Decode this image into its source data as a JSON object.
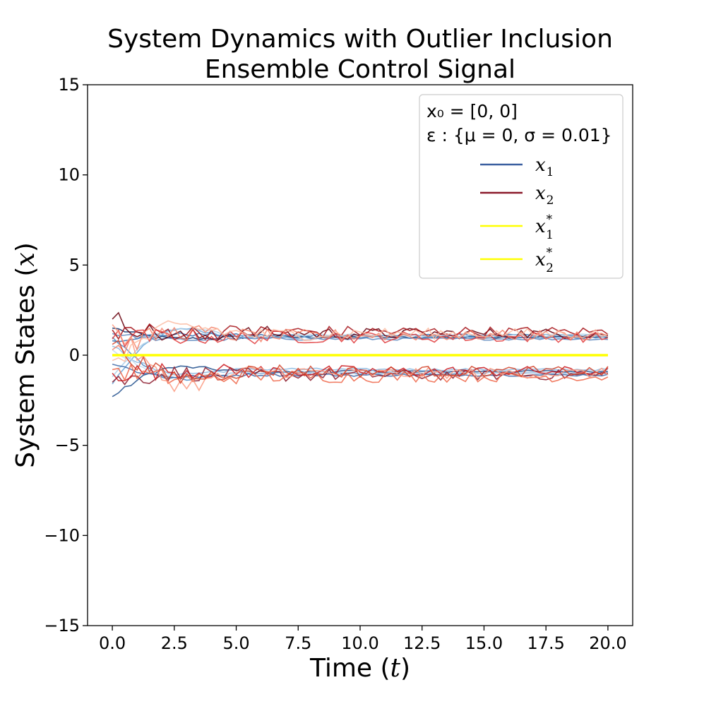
{
  "chart_data": {
    "type": "line",
    "title": [
      "System Dynamics with Outlier Inclusion",
      "Ensemble Control Signal"
    ],
    "xlabel": "Time (t)",
    "ylabel": "System States (x)",
    "xlim": [
      -1.0,
      21.0
    ],
    "ylim": [
      -15,
      15
    ],
    "xticks": [
      0.0,
      2.5,
      5.0,
      7.5,
      10.0,
      12.5,
      15.0,
      17.5,
      20.0
    ],
    "xtick_labels": [
      "0.0",
      "2.5",
      "5.0",
      "7.5",
      "10.0",
      "12.5",
      "15.0",
      "17.5",
      "20.0"
    ],
    "yticks": [
      -15,
      -10,
      -5,
      0,
      5,
      10,
      15
    ],
    "ytick_labels": [
      "−15",
      "−10",
      "−5",
      "0",
      "5",
      "10",
      "15"
    ],
    "legend": {
      "position": "upper-right",
      "header_lines": [
        "x₀ = [0, 0]",
        "ε : {μ = 0, σ = 0.01}"
      ],
      "entries": [
        {
          "label": "x",
          "sub": "1",
          "sup": "",
          "color": "#3a5fa0"
        },
        {
          "label": "x",
          "sub": "2",
          "sup": "",
          "color": "#8b1a2b"
        },
        {
          "label": "x",
          "sub": "1",
          "sup": "*",
          "color": "#ffff00"
        },
        {
          "label": "x",
          "sub": "2",
          "sup": "*",
          "color": "#ffff00"
        }
      ]
    },
    "ensemble": {
      "members": 10,
      "time_start": 0.0,
      "time_end": 20.0,
      "time_step": 0.25,
      "x1_colors": [
        "#08306b",
        "#1f4e8c",
        "#2f6eb0",
        "#4a88c4",
        "#6aa3d6",
        "#8cbbe3",
        "#aacfe9",
        "#c6dbef",
        "#5b86bd",
        "#3b66a6"
      ],
      "x2_colors": [
        "#67000d",
        "#8b1a2b",
        "#a50f15",
        "#cb181d",
        "#e0393b",
        "#ef6548",
        "#f4826a",
        "#fb9a80",
        "#fcbba1",
        "#d2442c"
      ],
      "x1_initial_values": [
        1.5,
        -2.3,
        0.8,
        1.0,
        -1.6,
        0.5,
        -1.2,
        0.3,
        1.2,
        -0.5
      ],
      "x2_initial_values": [
        2.0,
        -1.5,
        1.4,
        -1.0,
        0.9,
        -0.8,
        0.3,
        1.7,
        -0.3,
        0.6
      ],
      "x1_final_values": [
        1.0,
        -0.9,
        1.1,
        -1.0,
        1.0,
        -0.8,
        1.1,
        -1.0,
        0.9,
        -1.1
      ],
      "x2_final_values": [
        1.2,
        -1.1,
        1.3,
        -0.9,
        1.0,
        -1.2,
        1.1,
        -1.0,
        1.2,
        -0.9
      ],
      "noise_amplitude_x1": 0.1,
      "noise_amplitude_x2": 0.45,
      "reference_x1_star": 0.0,
      "reference_x2_star": 0.0,
      "reference_color": "#ffff00"
    }
  }
}
